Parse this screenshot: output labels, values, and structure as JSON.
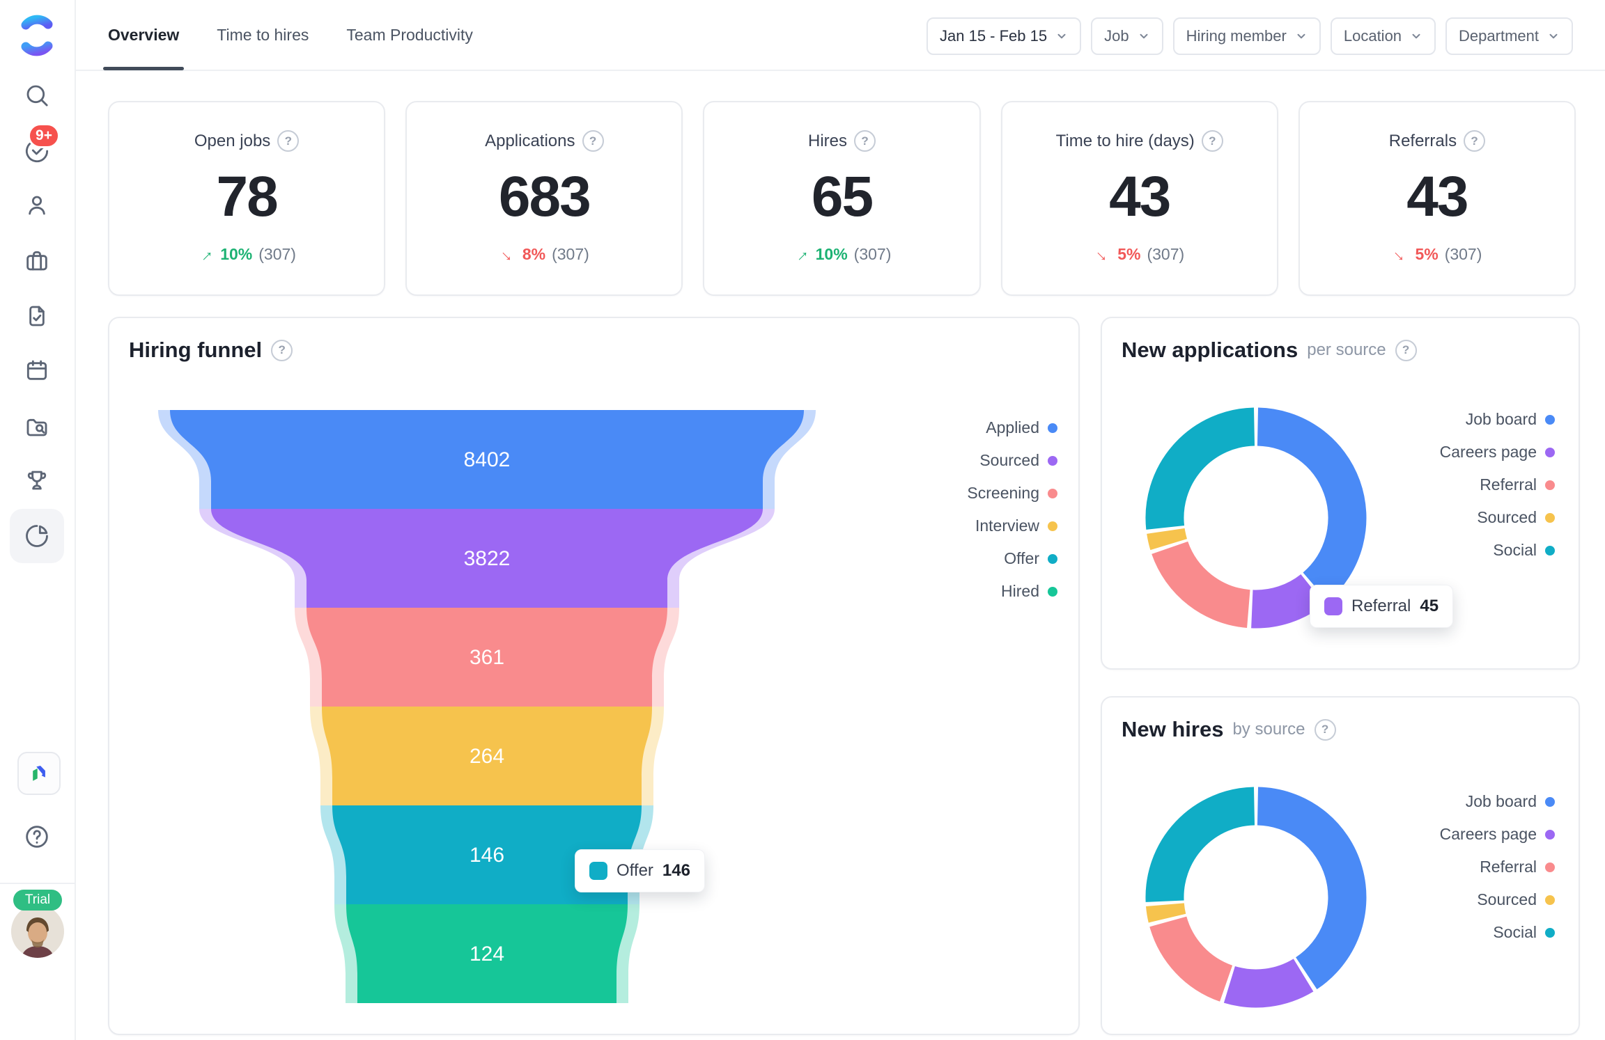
{
  "app": {
    "notification_badge": "9+",
    "trial_label": "Trial",
    "help_glyph": "?"
  },
  "sidebar": {
    "items": [
      {
        "icon": "search"
      },
      {
        "icon": "tasks",
        "badge": "9+"
      },
      {
        "icon": "candidates"
      },
      {
        "icon": "jobs"
      },
      {
        "icon": "reviews"
      },
      {
        "icon": "calendar"
      },
      {
        "icon": "talent-search"
      },
      {
        "icon": "awards"
      },
      {
        "icon": "reports",
        "active": true
      }
    ],
    "footer_items": [
      {
        "icon": "marketplace-app"
      },
      {
        "icon": "help"
      }
    ]
  },
  "header": {
    "tabs": [
      {
        "label": "Overview",
        "active": true
      },
      {
        "label": "Time to hires",
        "active": false
      },
      {
        "label": "Team Productivity",
        "active": false
      }
    ],
    "filters": [
      {
        "label": "Jan 15 - Feb 15",
        "emphasis": true
      },
      {
        "label": "Job",
        "emphasis": false
      },
      {
        "label": "Hiring member",
        "emphasis": false
      },
      {
        "label": "Location",
        "emphasis": false
      },
      {
        "label": "Department",
        "emphasis": false
      }
    ]
  },
  "stats": [
    {
      "label": "Open jobs",
      "value": "78",
      "delta_pct": "10%",
      "trend": "up",
      "ref": "(307)"
    },
    {
      "label": "Applications",
      "value": "683",
      "delta_pct": "8%",
      "trend": "down",
      "ref": "(307)"
    },
    {
      "label": "Hires",
      "value": "65",
      "delta_pct": "10%",
      "trend": "up",
      "ref": "(307)"
    },
    {
      "label": "Time to hire (days)",
      "value": "43",
      "delta_pct": "5%",
      "trend": "down",
      "ref": "(307)"
    },
    {
      "label": "Referrals",
      "value": "43",
      "delta_pct": "5%",
      "trend": "down",
      "ref": "(307)"
    }
  ],
  "colors": {
    "trend_up": "#1db273",
    "trend_down": "#f15858",
    "blue": "#4a8af6",
    "purple": "#9c68f3",
    "salmon": "#f98b8d",
    "amber": "#f6c34d",
    "teal": "#10adc6",
    "green": "#16c698",
    "badge_red": "#f6514d",
    "trial_green": "#2fbe83"
  },
  "chart_data": [
    {
      "type": "funnel",
      "title": "Hiring funnel",
      "stages": [
        "Applied",
        "Sourced",
        "Screening",
        "Interview",
        "Offer",
        "Hired"
      ],
      "values": [
        8402,
        3822,
        361,
        264,
        146,
        124
      ],
      "colors": [
        "#4a8af6",
        "#9c68f3",
        "#f98b8d",
        "#f6c34d",
        "#10adc6",
        "#16c698"
      ],
      "legend_position": "right",
      "tooltip": {
        "label": "Offer",
        "value": 146,
        "swatch_color": "#10adc6"
      }
    },
    {
      "type": "pie",
      "title": "New applications",
      "subtitle": "per source",
      "labels": [
        "Job board",
        "Careers page",
        "Referral",
        "Sourced",
        "Social"
      ],
      "values_pct": [
        39,
        12,
        19,
        3,
        27
      ],
      "colors": [
        "#4a8af6",
        "#9c68f3",
        "#f98b8d",
        "#f6c34d",
        "#10adc6"
      ],
      "legend_position": "right",
      "tooltip": {
        "label": "Referral",
        "value": 45,
        "swatch_color": "#9c68f3"
      }
    },
    {
      "type": "pie",
      "title": "New hires",
      "subtitle": "by source",
      "labels": [
        "Job board",
        "Careers page",
        "Referral",
        "Sourced",
        "Social"
      ],
      "values_pct": [
        41,
        14,
        16,
        3,
        26
      ],
      "colors": [
        "#4a8af6",
        "#9c68f3",
        "#f98b8d",
        "#f6c34d",
        "#10adc6"
      ],
      "legend_position": "right"
    }
  ]
}
